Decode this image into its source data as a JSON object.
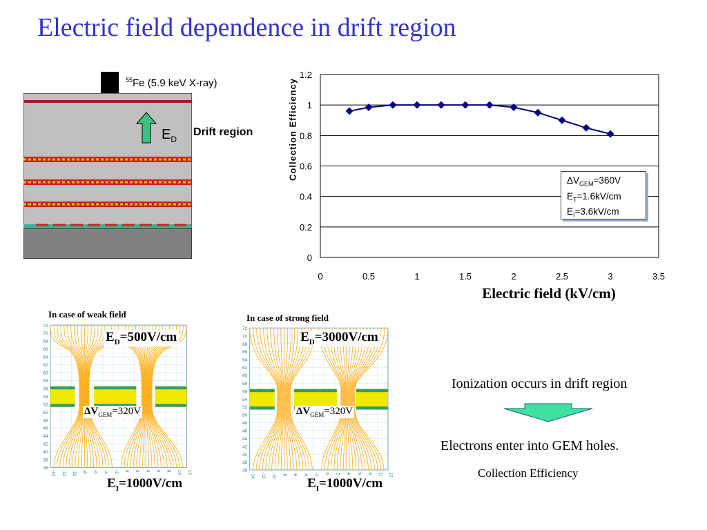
{
  "slide": {
    "title": "Electric field dependence in drift region"
  },
  "detector": {
    "source_sup": "55",
    "source_text": "Fe (5.9 keV X-ray)",
    "field_label": "E",
    "field_sub": "D",
    "region_label": "Drift region",
    "colors": {
      "chamber": "#c0c0c0",
      "bottom": "#808080",
      "cathode": "#a01c2c",
      "gem_red": "#cc2222",
      "gem_yellow": "#e8c000",
      "readout": "#40b090",
      "arrow": "#40c080"
    }
  },
  "chart_data": {
    "type": "line",
    "x": [
      0.3,
      0.5,
      0.75,
      1.0,
      1.25,
      1.5,
      1.75,
      2.0,
      2.25,
      2.5,
      2.75,
      3.0
    ],
    "y": [
      0.96,
      0.985,
      1.0,
      1.0,
      1.0,
      1.0,
      1.0,
      0.985,
      0.95,
      0.9,
      0.85,
      0.81
    ],
    "xlabel": "Electric field (kV/cm)",
    "ylabel": "Collection Efficiency",
    "xlim": [
      0,
      3.5
    ],
    "ylim": [
      0,
      1.2
    ],
    "xticks": [
      "0",
      "0.5",
      "1",
      "1.5",
      "2",
      "2.5",
      "3",
      "3.5"
    ],
    "yticks": [
      "0",
      "0.2",
      "0.4",
      "0.6",
      "0.8",
      "1",
      "1.2"
    ],
    "grid": "horizontal",
    "line_color": "#000080",
    "legend": {
      "placement": "bottom-right",
      "line1_prefix": "ΔV",
      "line1_sub": "GEM",
      "line1_value": "=360V",
      "line2_prefix": "E",
      "line2_sub": "T",
      "line2_value": "=1.6kV/cm",
      "line3_prefix": "E",
      "line3_sub": "I",
      "line3_value": "=3.6kV/cm"
    }
  },
  "simulations": {
    "weak": {
      "caption": "In case of weak field",
      "top_prefix": "E",
      "top_sub": "D",
      "top_value": "=500V/cm",
      "gem_prefix": "ΔV",
      "gem_sub": "GEM",
      "gem_value": "=320V",
      "bottom_prefix": "E",
      "bottom_sub": "I",
      "bottom_value": "=1000V/cm"
    },
    "strong": {
      "caption": "In case of strong field",
      "top_prefix": "E",
      "top_sub": "D",
      "top_value": "=3000V/cm",
      "gem_prefix": "ΔV",
      "gem_sub": "GEM",
      "gem_value": "=320V",
      "bottom_prefix": "E",
      "bottom_sub": "I",
      "bottom_value": "=1000V/cm"
    },
    "y_ticks": [
      "72",
      "70",
      "68",
      "66",
      "64",
      "62",
      "60",
      "58",
      "56",
      "54",
      "52",
      "50",
      "48",
      "46",
      "44",
      "42",
      "40",
      "38",
      "36"
    ],
    "x_ticks": [
      "-14",
      "-12",
      "-10",
      "-8",
      "-6",
      "-4",
      "-2",
      "0",
      "2",
      "4",
      "6",
      "8",
      "10",
      "12"
    ],
    "line_color": "#ffa500",
    "gem_color": "#f0e800",
    "electrode_color": "#30a060"
  },
  "notes": {
    "ionization": "Ionization occurs  in drift region",
    "electrons": "Electrons enter into GEM holes.",
    "collection": "Collection Efficiency",
    "arrow_color": "#40e0a0"
  }
}
